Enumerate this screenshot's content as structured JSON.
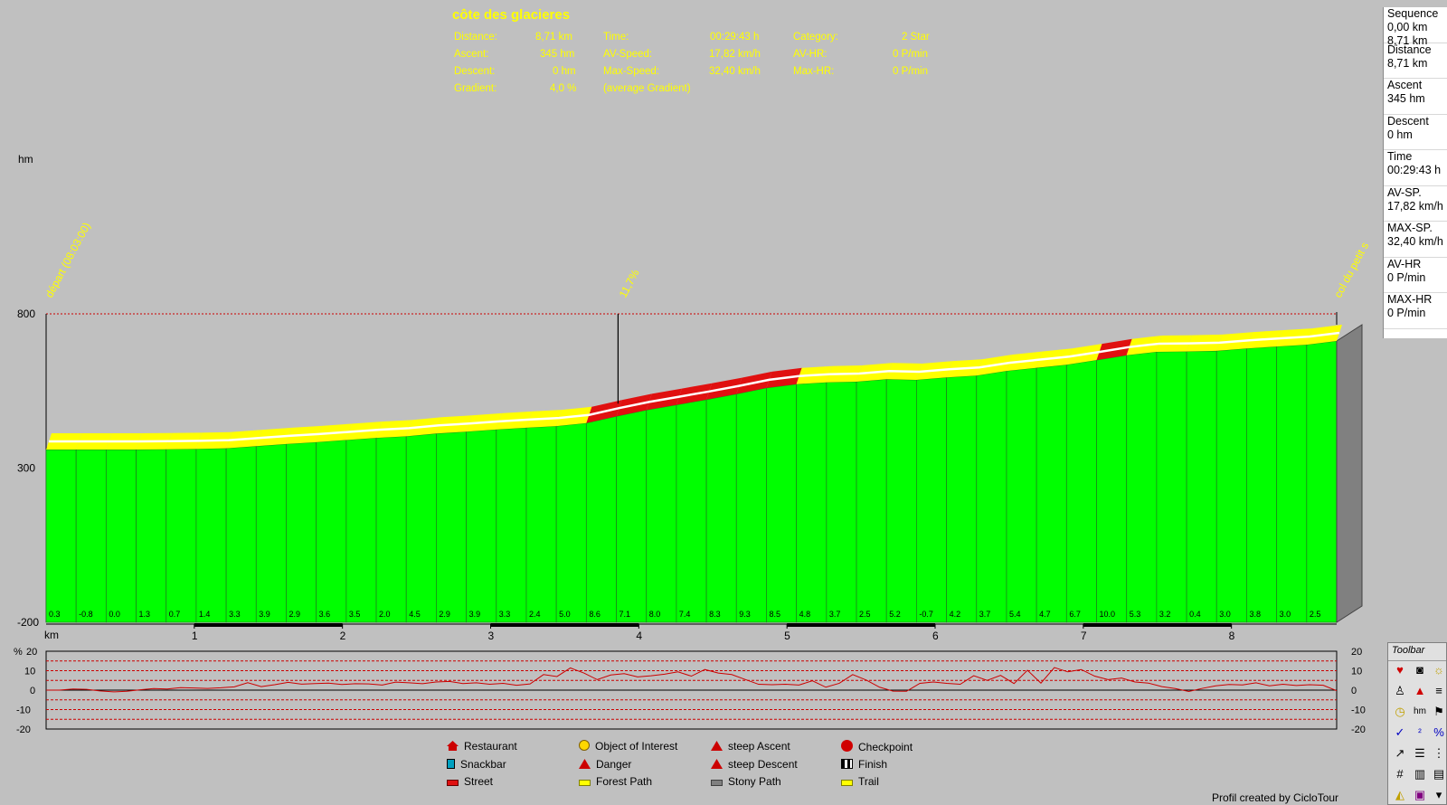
{
  "stats": {
    "title": "côte des glacieres",
    "rows": [
      {
        "label": "Distance:",
        "value": "8,71 km",
        "label2": "Time:",
        "value2": "00:29:43 h",
        "label3": "Category:",
        "value3": "2 Star"
      },
      {
        "label": "Ascent:",
        "value": "345 hm",
        "label2": "AV-Speed:",
        "value2": "17,82 km/h",
        "label3": "AV-HR:",
        "value3": "0 P/min"
      },
      {
        "label": "Descent:",
        "value": "0 hm",
        "label2": "Max-Speed:",
        "value2": "32,40 km/h",
        "label3": "Max-HR:",
        "value3": "0 P/min"
      },
      {
        "label": "Gradient:",
        "value": "4,0 %",
        "label2": "(average Gradient)",
        "value2": "",
        "label3": "",
        "value3": ""
      }
    ]
  },
  "sidebar": [
    {
      "label": "Sequence",
      "lines": [
        "0,00 km",
        "8,71 km"
      ]
    },
    {
      "label": "Distance",
      "lines": [
        "8,71 km"
      ]
    },
    {
      "label": "Ascent",
      "lines": [
        "345 hm"
      ]
    },
    {
      "label": "Descent",
      "lines": [
        "0 hm"
      ]
    },
    {
      "label": "Time",
      "lines": [
        "00:29:43 h"
      ]
    },
    {
      "label": "AV-SP.",
      "lines": [
        "17,82 km/h"
      ]
    },
    {
      "label": "MAX-SP.",
      "lines": [
        "32,40 km/h"
      ]
    },
    {
      "label": "AV-HR",
      "lines": [
        "0 P/min"
      ]
    },
    {
      "label": "MAX-HR",
      "lines": [
        "0 P/min"
      ]
    }
  ],
  "chart_data": [
    {
      "type": "area",
      "ylabel": "hm",
      "xlabel": "km",
      "ylim": [
        -200,
        800
      ],
      "xlim": [
        0,
        8.71
      ],
      "y_ticks": [
        "800",
        "300",
        "-200"
      ],
      "x_ticks": [
        "1",
        "2",
        "3",
        "4",
        "5",
        "6",
        "7",
        "8"
      ],
      "annotations": [
        {
          "text": "départ (08:03:00)",
          "x": 0
        },
        {
          "text": "11,7%",
          "x": 3.86
        },
        {
          "text": "col du petit s",
          "x": 8.71
        }
      ],
      "segment_gradients": [
        "0.3",
        "-0.8",
        "0.0",
        "1.3",
        "0.7",
        "1.4",
        "3.3",
        "3.9",
        "2.9",
        "3.6",
        "3.5",
        "2.0",
        "4.5",
        "2.9",
        "3.9",
        "3.3",
        "2.4",
        "5.0",
        "8.6",
        "7.1",
        "8.0",
        "7.4",
        "8.3",
        "9.3",
        "8.5",
        "4.8",
        "3.7",
        "2.5",
        "5.2",
        "-0.7",
        "4.2",
        "3.7",
        "5.4",
        "4.7",
        "6.7",
        "10.0",
        "5.3",
        "3.2",
        "0.4",
        "3.0",
        "3.8",
        "3.0",
        "2.5"
      ],
      "series": [
        {
          "values": [
            360,
            360,
            360,
            360,
            361,
            362,
            364,
            371,
            378,
            384,
            391,
            398,
            403,
            412,
            418,
            425,
            431,
            436,
            446,
            468,
            488,
            505,
            522,
            540,
            560,
            572,
            578,
            580,
            588,
            586,
            594,
            600,
            615,
            625,
            635,
            650,
            666,
            677,
            678,
            680,
            688,
            694,
            700,
            712
          ]
        }
      ],
      "colors": {
        "terrain": "#00ff00",
        "trail": "#ffff00",
        "street": "#e01010",
        "sky": "#c0c0c0"
      }
    },
    {
      "type": "line",
      "ylabel": "%",
      "ylim": [
        -20,
        20
      ],
      "y_ticks": [
        "20",
        "10",
        "0",
        "-10",
        "-20"
      ],
      "series": [
        {
          "values": [
            0,
            0,
            0.6,
            0.4,
            -0.4,
            -0.9,
            -0.6,
            0.2,
            0.8,
            0.6,
            1.3,
            1.1,
            0.9,
            1.2,
            1.7,
            3.8,
            1.8,
            2.8,
            4.0,
            3.1,
            3.4,
            3.6,
            2.9,
            3.3,
            3.2,
            2.6,
            4.1,
            3.8,
            3.3,
            4.2,
            4.5,
            3.4,
            3.8,
            3.0,
            3.5,
            2.5,
            3.2,
            8.0,
            7.0,
            11.4,
            8.8,
            5.4,
            7.8,
            8.5,
            6.8,
            7.4,
            8.2,
            9.4,
            7.2,
            10.6,
            8.8,
            8.0,
            5.5,
            3.0,
            2.8,
            3.0,
            2.6,
            4.8,
            1.5,
            3.5,
            8.0,
            5.2,
            1.5,
            -0.5,
            -0.6,
            3.5,
            4.2,
            3.5,
            3.0,
            7.4,
            5.0,
            7.6,
            3.4,
            10.2,
            3.6,
            11.6,
            9.4,
            10.6,
            7.2,
            5.4,
            6.2,
            4.2,
            3.6,
            1.8,
            0.8,
            -0.7,
            0.9,
            2.2,
            2.9,
            2.7,
            3.8,
            2.2,
            3.0,
            2.4,
            2.8,
            2.5,
            -0.3
          ]
        }
      ]
    }
  ],
  "legend": [
    {
      "label": "Restaurant",
      "icon": "restaurant-icon",
      "color": "#cc0000"
    },
    {
      "label": "Snackbar",
      "icon": "snackbar-icon",
      "color": "#00a0c0"
    },
    {
      "label": "Street",
      "icon": "street-icon",
      "color": "#e01010"
    },
    {
      "label": "Object of Interest",
      "icon": "smiley-icon",
      "color": "#ffd700"
    },
    {
      "label": "Danger",
      "icon": "danger-icon",
      "color": "#cc0000"
    },
    {
      "label": "Forest Path",
      "icon": "forest-path-icon",
      "color": "#ffff00"
    },
    {
      "label": "steep Ascent",
      "icon": "steep-ascent-icon",
      "color": "#cc0000"
    },
    {
      "label": "steep Descent",
      "icon": "steep-descent-icon",
      "color": "#cc0000"
    },
    {
      "label": "Stony Path",
      "icon": "stony-path-icon",
      "color": "#808080"
    },
    {
      "label": "Checkpoint",
      "icon": "stop-icon",
      "color": "#d00000"
    },
    {
      "label": "Finish",
      "icon": "finish-flag-icon",
      "color": "#000000"
    },
    {
      "label": "Trail",
      "icon": "trail-icon",
      "color": "#ffff00"
    }
  ],
  "credit": "Profil created by CicloTour",
  "toolbar": {
    "title": "Toolbar"
  }
}
